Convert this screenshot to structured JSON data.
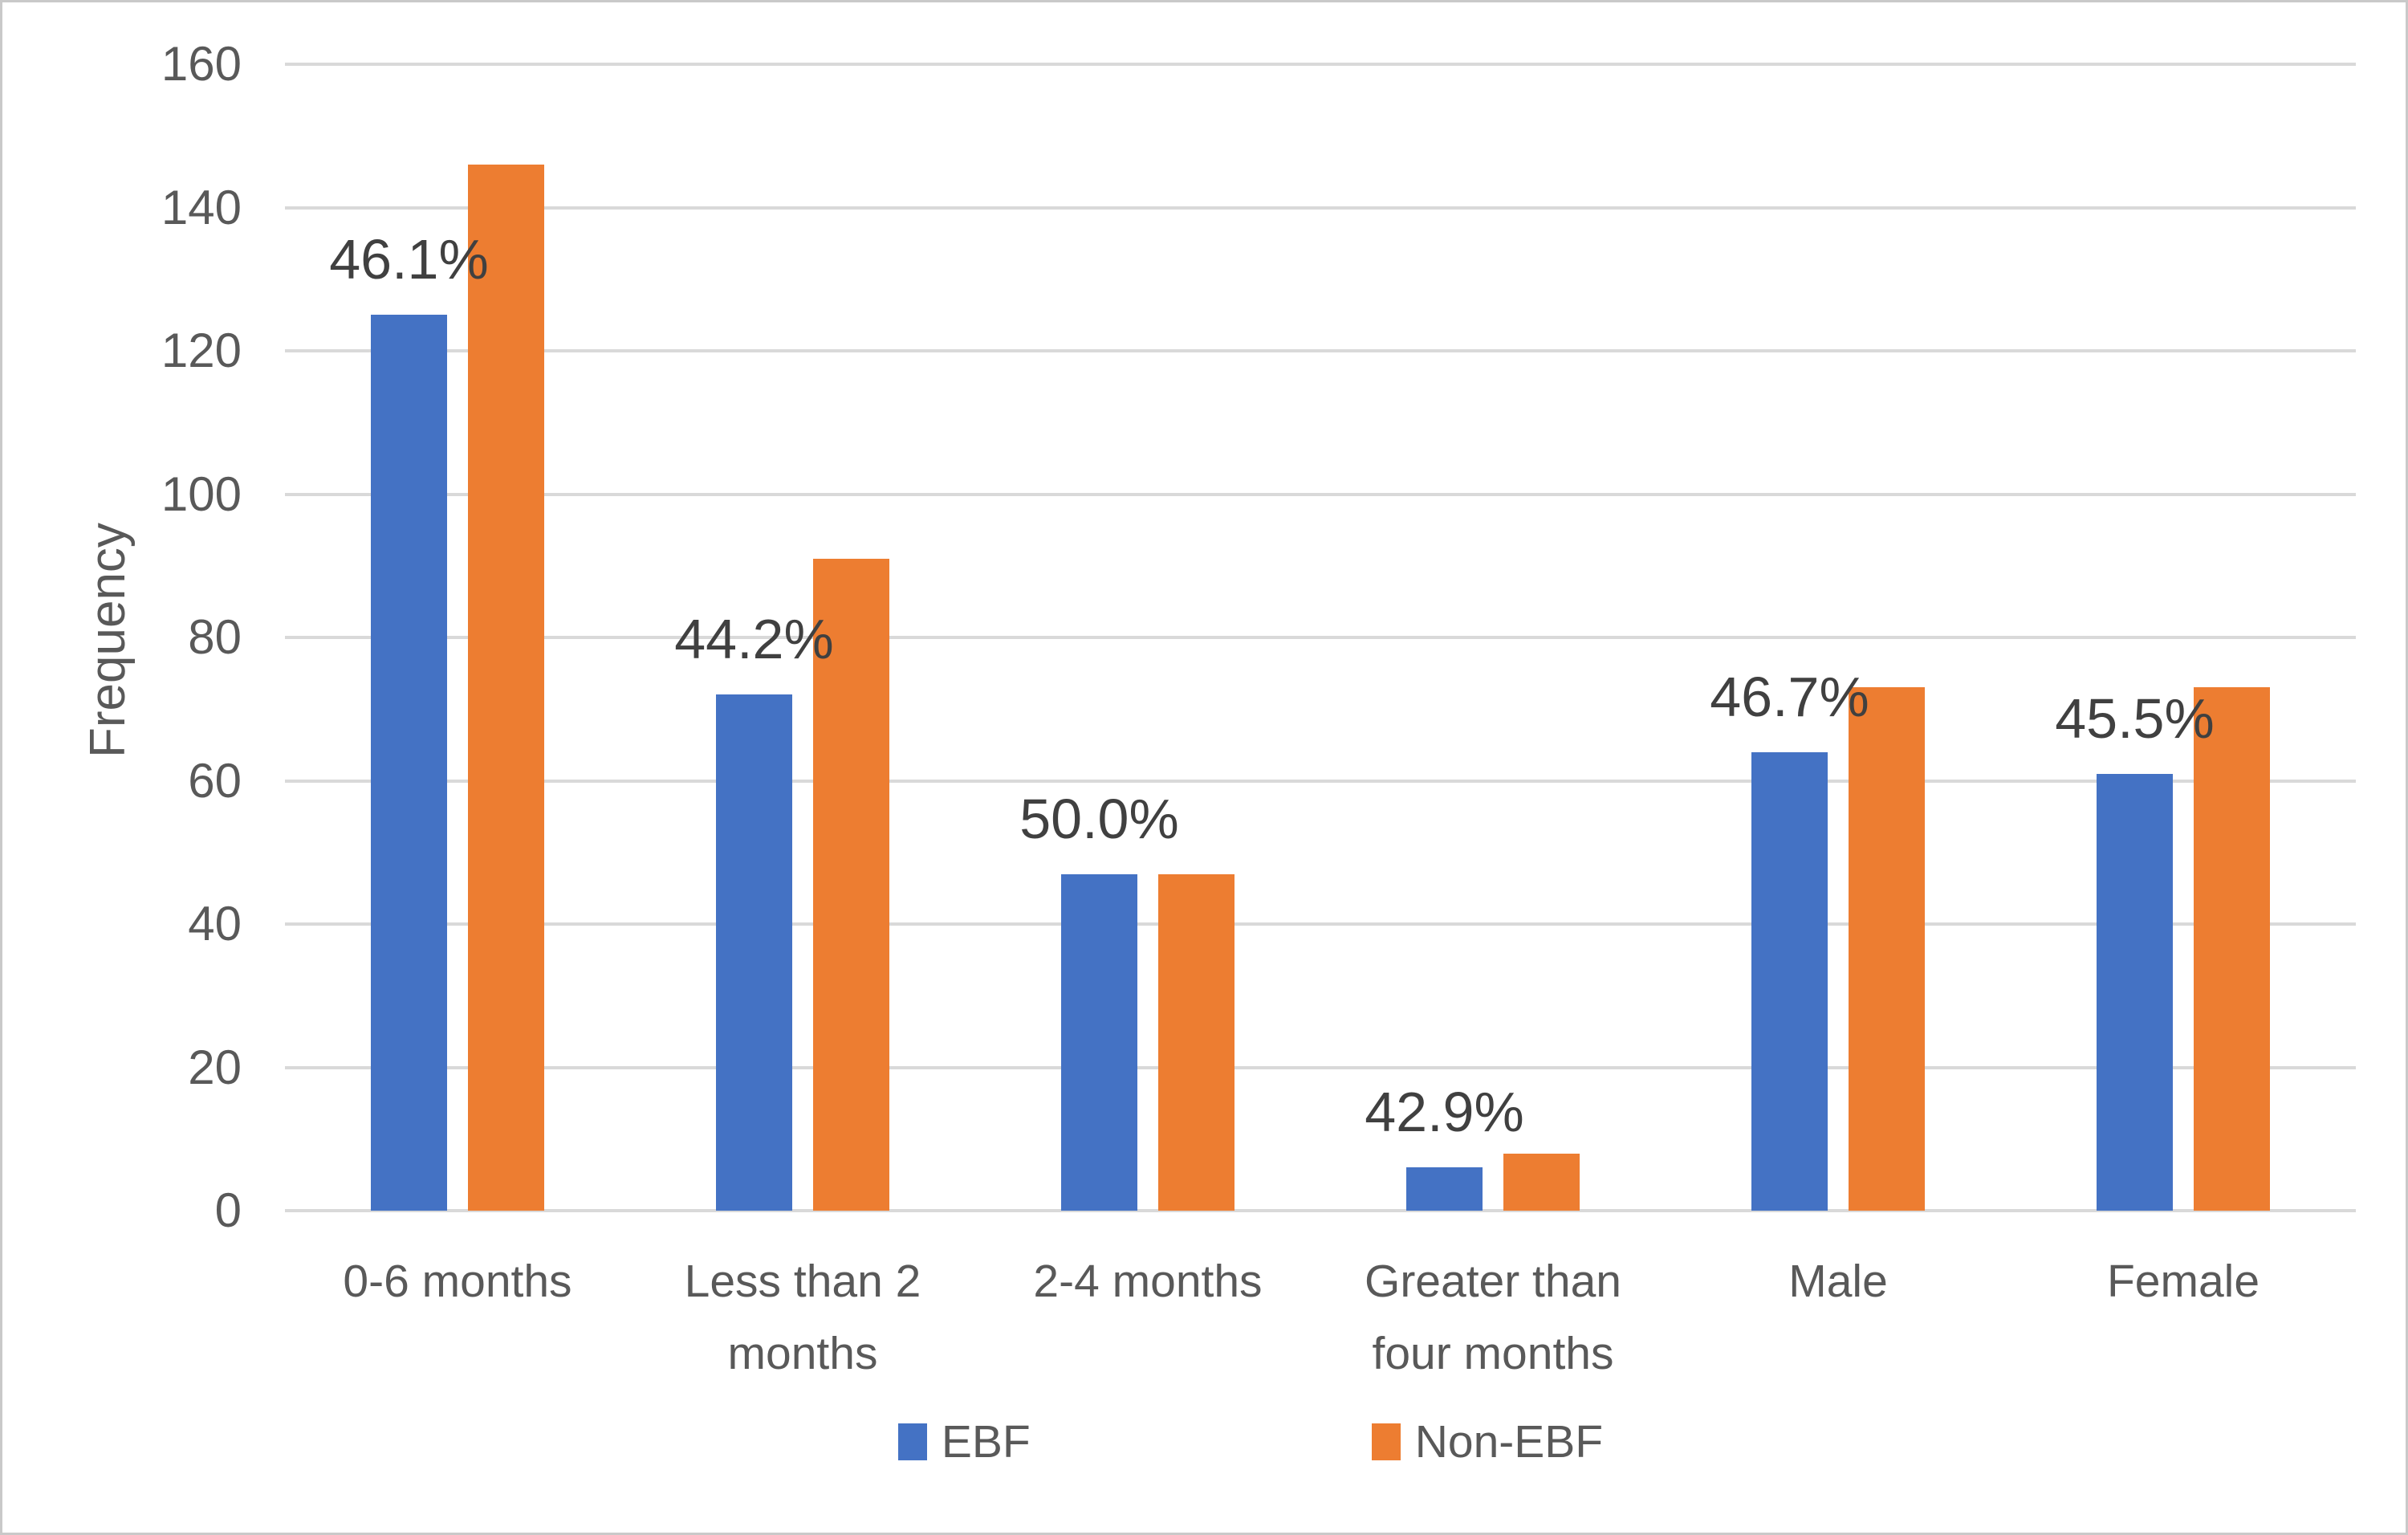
{
  "chart_data": {
    "type": "bar",
    "title": "",
    "categories": [
      "0-6 months",
      "Less than 2 months",
      "2-4 months",
      "Greater than four months",
      "Male",
      "Female"
    ],
    "series": [
      {
        "name": "EBF",
        "color": "#4472C4",
        "values": [
          125,
          72,
          47,
          6,
          64,
          61
        ]
      },
      {
        "name": "Non-EBF",
        "color": "#ED7D31",
        "values": [
          146,
          91,
          47,
          8,
          73,
          73
        ]
      }
    ],
    "data_labels": {
      "attached_to_series": "EBF",
      "values": [
        "46.1%",
        "44.2%",
        "50.0%",
        "42.9%",
        "46.7%",
        "45.5%"
      ]
    },
    "ylabel": "Frequency",
    "xlabel": "",
    "ylim": [
      0,
      160
    ],
    "yticks": [
      0,
      20,
      40,
      60,
      80,
      100,
      120,
      140,
      160
    ],
    "grid": "horizontal",
    "legend_position": "bottom"
  },
  "colors": {
    "ebf_bar": "#4472C4",
    "non_ebf_bar": "#ED7D31",
    "gridline": "#D9D9D9",
    "axis_text": "#595959",
    "data_label_text": "#404040",
    "chart_border": "#C9C9C9",
    "background": "#FFFFFF"
  }
}
